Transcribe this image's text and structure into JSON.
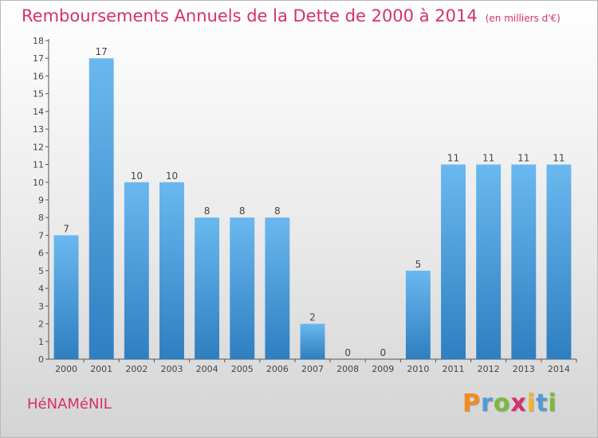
{
  "header": {
    "title": "Remboursements Annuels de la Dette de 2000 à 2014",
    "unit": "(en milliers d'€)"
  },
  "footer": {
    "commune": "HéNAMéNIL",
    "logo_letters": [
      "P",
      "r",
      "o",
      "x",
      "i",
      "t",
      "i"
    ],
    "logo_colors": [
      "#f28c1e",
      "#4e9bd5",
      "#7cba3d",
      "#d62f6f",
      "#f2b51e",
      "#4e9bd5",
      "#7cba3d"
    ]
  },
  "colors": {
    "bar_top": "#6ab8ef",
    "bar_bottom": "#2e7fc1",
    "text": "#d62f6f"
  },
  "chart_data": {
    "type": "bar",
    "title": "Remboursements Annuels de la Dette de 2000 à 2014",
    "categories": [
      "2000",
      "2001",
      "2002",
      "2003",
      "2004",
      "2005",
      "2006",
      "2007",
      "2008",
      "2009",
      "2010",
      "2011",
      "2012",
      "2013",
      "2014"
    ],
    "values": [
      7,
      17,
      10,
      10,
      8,
      8,
      8,
      2,
      0,
      0,
      5,
      11,
      11,
      11,
      11
    ],
    "ylim": [
      0,
      18
    ],
    "yticks": [
      0,
      1,
      2,
      3,
      4,
      5,
      6,
      7,
      8,
      9,
      10,
      11,
      12,
      13,
      14,
      15,
      16,
      17,
      18
    ],
    "grid": false
  }
}
